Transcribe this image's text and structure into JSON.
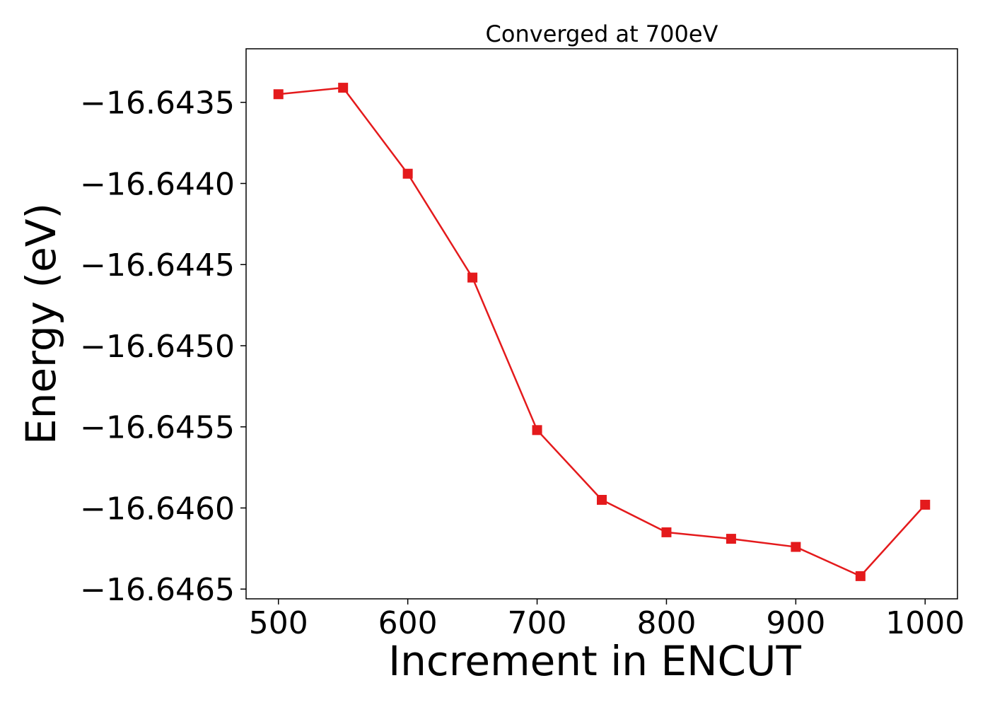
{
  "chart_data": {
    "type": "line",
    "title": "Converged at 700eV",
    "xlabel": "Increment in ENCUT",
    "ylabel": "Energy (eV)",
    "x": [
      500,
      550,
      600,
      650,
      700,
      750,
      800,
      850,
      900,
      950,
      1000
    ],
    "series": [
      {
        "values": [
          -16.64345,
          -16.64341,
          -16.64394,
          -16.64458,
          -16.64552,
          -16.64595,
          -16.64615,
          -16.64619,
          -16.64624,
          -16.64642,
          -16.64598
        ],
        "color": "#e41a1c",
        "marker": "square"
      }
    ],
    "xlim": [
      475,
      1025
    ],
    "ylim": [
      -16.64656,
      -16.64317
    ],
    "xticks": [
      500,
      600,
      700,
      800,
      900,
      1000
    ],
    "xtick_labels": [
      "500",
      "600",
      "700",
      "800",
      "900",
      "1000"
    ],
    "yticks": [
      -16.6435,
      -16.644,
      -16.6445,
      -16.645,
      -16.6455,
      -16.646,
      -16.6465
    ],
    "ytick_labels": [
      "−16.6435",
      "−16.6440",
      "−16.6445",
      "−16.6450",
      "−16.6455",
      "−16.6460",
      "−16.6465"
    ],
    "grid": false,
    "legend": "none"
  }
}
